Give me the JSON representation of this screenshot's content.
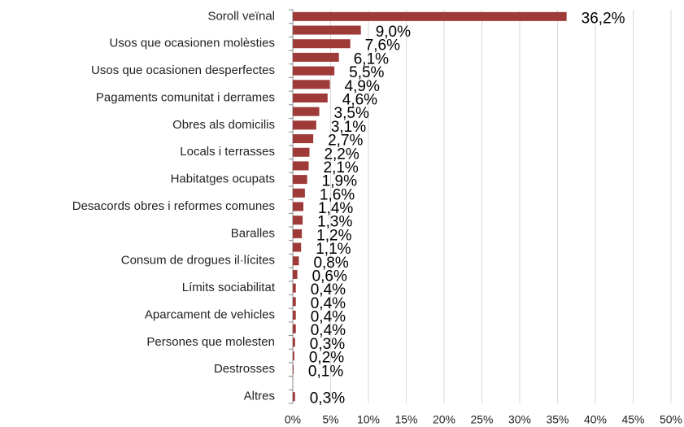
{
  "chart_data": {
    "type": "bar",
    "orientation": "horizontal",
    "categories": [
      "Soroll veïnal",
      null,
      "Usos que ocasionen molèsties",
      null,
      "Usos que ocasionen desperfectes",
      null,
      "Pagaments comunitat i derrames",
      null,
      "Obres als domicilis",
      null,
      "Locals i terrasses",
      null,
      "Habitatges ocupats",
      null,
      "Desacords obres i reformes comunes",
      null,
      "Baralles",
      null,
      "Consum de drogues il·lícites",
      null,
      "Límits sociabilitat",
      null,
      "Aparcament de vehicles",
      null,
      "Persones que molesten",
      null,
      "Destrosses",
      null,
      "Altres"
    ],
    "values": [
      36.2,
      9.0,
      7.6,
      6.1,
      5.5,
      4.9,
      4.6,
      3.5,
      3.1,
      2.7,
      2.2,
      2.1,
      1.9,
      1.6,
      1.4,
      1.3,
      1.2,
      1.1,
      0.8,
      0.6,
      0.4,
      0.4,
      0.4,
      0.4,
      0.3,
      0.2,
      0.1,
      null,
      0.3
    ],
    "value_labels": [
      "36,2%",
      "9,0%",
      "7,6%",
      "6,1%",
      "5,5%",
      "4,9%",
      "4,6%",
      "3,5%",
      "3,1%",
      "2,7%",
      "2,2%",
      "2,1%",
      "1,9%",
      "1,6%",
      "1,4%",
      "1,3%",
      "1,2%",
      "1,1%",
      "0,8%",
      "0,6%",
      "0,4%",
      "0,4%",
      "0,4%",
      "0,4%",
      "0,3%",
      "0,2%",
      "0,1%",
      null,
      "0,3%"
    ],
    "color": "#9e3a38",
    "xlim": [
      0,
      50
    ],
    "xticks": [
      {
        "value": 0,
        "label": "0%"
      },
      {
        "value": 5,
        "label": "5%"
      },
      {
        "value": 10,
        "label": "10%"
      },
      {
        "value": 15,
        "label": "15%"
      },
      {
        "value": 20,
        "label": "20%"
      },
      {
        "value": 25,
        "label": "25%"
      },
      {
        "value": 30,
        "label": "30%"
      },
      {
        "value": 35,
        "label": "35%"
      },
      {
        "value": 40,
        "label": "40%"
      },
      {
        "value": 45,
        "label": "45%"
      },
      {
        "value": 50,
        "label": "50%"
      }
    ],
    "grid": true
  }
}
